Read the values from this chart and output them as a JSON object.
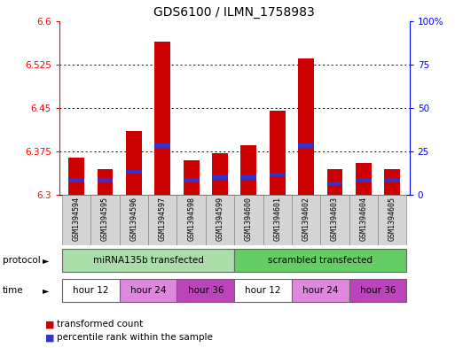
{
  "title": "GDS6100 / ILMN_1758983",
  "samples": [
    "GSM1394594",
    "GSM1394595",
    "GSM1394596",
    "GSM1394597",
    "GSM1394598",
    "GSM1394599",
    "GSM1394600",
    "GSM1394601",
    "GSM1394602",
    "GSM1394603",
    "GSM1394604",
    "GSM1394605"
  ],
  "bar_values": [
    6.365,
    6.345,
    6.41,
    6.565,
    6.36,
    6.372,
    6.385,
    6.445,
    6.535,
    6.345,
    6.355,
    6.345
  ],
  "blue_values": [
    6.325,
    6.325,
    6.34,
    6.385,
    6.325,
    6.33,
    6.33,
    6.335,
    6.385,
    6.32,
    6.325,
    6.325
  ],
  "bar_color": "#cc0000",
  "blue_color": "#3333cc",
  "ymin": 6.3,
  "ymax": 6.6,
  "yticks_left": [
    6.3,
    6.375,
    6.45,
    6.525,
    6.6
  ],
  "yticks_right": [
    0,
    25,
    50,
    75,
    100
  ],
  "protocol_groups": [
    {
      "label": "miRNA135b transfected",
      "start": 0,
      "end": 6,
      "color": "#aaddaa"
    },
    {
      "label": "scrambled transfected",
      "start": 6,
      "end": 12,
      "color": "#66cc66"
    }
  ],
  "time_groups": [
    {
      "label": "hour 12",
      "start": 0,
      "end": 2,
      "color": "#ffffff"
    },
    {
      "label": "hour 24",
      "start": 2,
      "end": 4,
      "color": "#dd88dd"
    },
    {
      "label": "hour 36",
      "start": 4,
      "end": 6,
      "color": "#bb44bb"
    },
    {
      "label": "hour 12",
      "start": 6,
      "end": 8,
      "color": "#ffffff"
    },
    {
      "label": "hour 24",
      "start": 8,
      "end": 10,
      "color": "#dd88dd"
    },
    {
      "label": "hour 36",
      "start": 10,
      "end": 12,
      "color": "#bb44bb"
    }
  ],
  "legend_items": [
    {
      "label": "transformed count",
      "color": "#cc0000"
    },
    {
      "label": "percentile rank within the sample",
      "color": "#3333cc"
    }
  ],
  "bar_width": 0.55,
  "plot_bg_color": "#ffffff"
}
